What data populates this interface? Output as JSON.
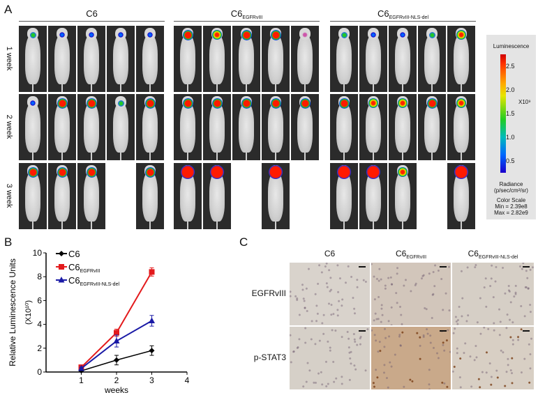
{
  "panels": {
    "A": {
      "letter": "A",
      "groups": [
        {
          "name": "C6",
          "subscript": ""
        },
        {
          "name": "C6",
          "subscript": "EGFRvIII"
        },
        {
          "name": "C6",
          "subscript": "EGFRvIII-NLS-del"
        }
      ],
      "rows": [
        "1 week",
        "2 week",
        "3 week"
      ],
      "mice_present": [
        [
          [
            1,
            1,
            1,
            1,
            1
          ],
          [
            1,
            1,
            1,
            1,
            1
          ],
          [
            1,
            1,
            1,
            0,
            1
          ]
        ],
        [
          [
            1,
            1,
            1,
            1,
            1
          ],
          [
            1,
            1,
            1,
            1,
            1
          ],
          [
            1,
            1,
            0,
            1,
            0
          ]
        ],
        [
          [
            1,
            1,
            1,
            1,
            1
          ],
          [
            1,
            1,
            1,
            1,
            1
          ],
          [
            1,
            1,
            1,
            0,
            1
          ]
        ]
      ],
      "colorbar": {
        "title": "Luminescence",
        "ticks": [
          "2.5",
          "2.0",
          "1.5",
          "1.0",
          "0.5"
        ],
        "multiplier": "X10⁹",
        "unit_label": "Radiance",
        "unit": "(p/sec/cm²/sr)",
        "scale_title": "Color  Scale",
        "min": "Min = 2.39e8",
        "max": "Max = 2.82e9"
      }
    },
    "B": {
      "letter": "B"
    },
    "C": {
      "letter": "C",
      "columns": [
        {
          "name": "C6",
          "subscript": ""
        },
        {
          "name": "C6",
          "subscript": "EGFRvIII"
        },
        {
          "name": "C6",
          "subscript": "EGFRvIII-NLS-del"
        }
      ],
      "rows": [
        "EGFRvIII",
        "p-STAT3"
      ]
    }
  },
  "chart_data": {
    "type": "line",
    "title": "",
    "xlabel": "weeks",
    "ylabel": "Relative Luminescence Units",
    "ylabel_multiplier": "(X10¹⁰)",
    "x": [
      1,
      2,
      3
    ],
    "xlim": [
      0,
      4
    ],
    "xticks": [
      "1",
      "2",
      "3",
      "4"
    ],
    "ylim": [
      0,
      10
    ],
    "yticks": [
      "0",
      "2",
      "4",
      "6",
      "8",
      "10"
    ],
    "grid": false,
    "legend_position": "upper left",
    "series": [
      {
        "name": "C6",
        "subscript": "",
        "color": "#000000",
        "marker": "diamond",
        "values": [
          0.1,
          1.0,
          1.8
        ],
        "errors": [
          0.05,
          0.4,
          0.4
        ]
      },
      {
        "name": "C6",
        "subscript": "EGFRvIII",
        "color": "#e31a1c",
        "marker": "square",
        "values": [
          0.4,
          3.3,
          8.4
        ],
        "errors": [
          0.1,
          0.3,
          0.35
        ]
      },
      {
        "name": "C6",
        "subscript": "EGFRvIII-NLS-del",
        "color": "#1a1aa6",
        "marker": "triangle",
        "values": [
          0.3,
          2.6,
          4.3
        ],
        "errors": [
          0.1,
          0.5,
          0.45
        ]
      }
    ]
  }
}
